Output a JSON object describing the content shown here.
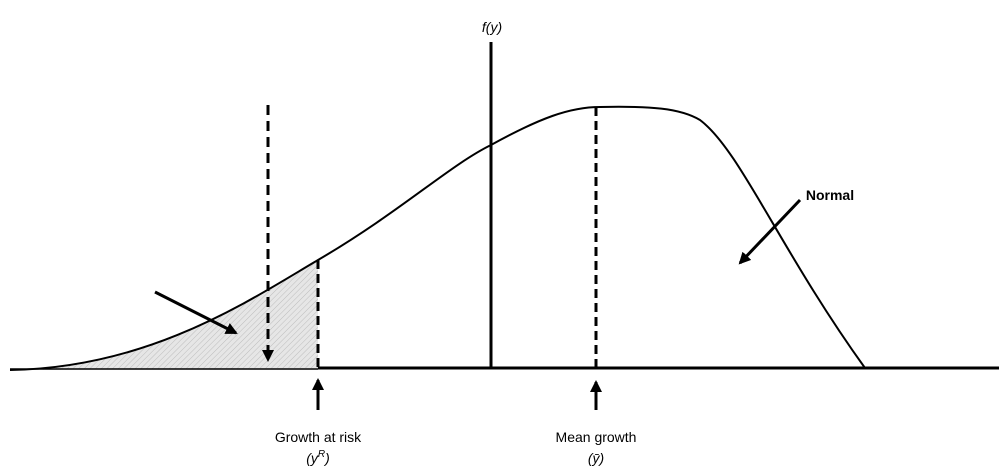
{
  "labels": {
    "axis_label": "f(y)",
    "normal": "Normal",
    "growth_at_risk": "Growth at risk",
    "growth_at_risk_symbol": "(y",
    "growth_at_risk_superscript": "R",
    "growth_at_risk_close": ")",
    "mean_growth": "Mean growth",
    "mean_symbol": "(ȳ)"
  }
}
